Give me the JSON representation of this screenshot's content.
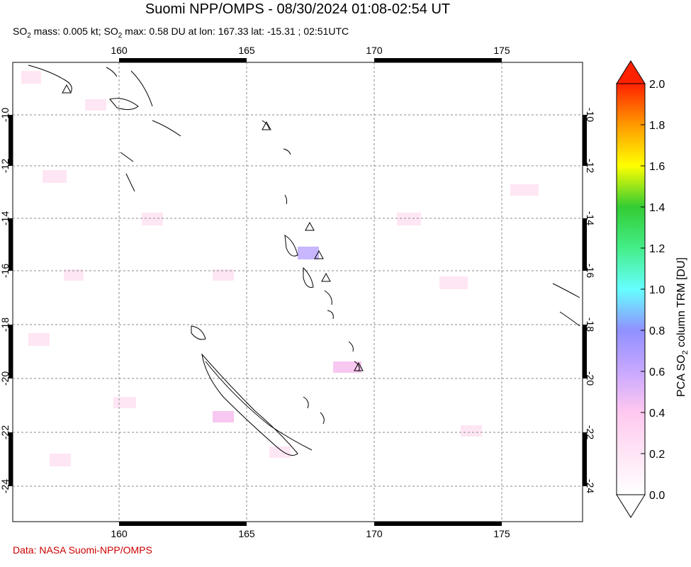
{
  "map": {
    "title": "Suomi NPP/OMPS - 08/30/2024 01:08-02:54 UT",
    "subtitle": {
      "p1": "SO",
      "p2": " mass: 0.005 kt; SO",
      "p3": " max: 0.58 DU at lon: 167.33 lat: -15.31 ; 02:51UTC",
      "sub": "2"
    },
    "credit": "Data: NASA Suomi-NPP/OMPS",
    "lon_ticks": [
      "160",
      "165",
      "170",
      "175"
    ],
    "lat_ticks": [
      "-10",
      "-12",
      "-14",
      "-16",
      "-18",
      "-20",
      "-22",
      "-24"
    ],
    "colorbar": {
      "label_pre": "PCA SO",
      "label_sub": "2",
      "label_post": " column TRM [DU]",
      "ticks": [
        "0.0",
        "0.2",
        "0.4",
        "0.6",
        "0.8",
        "1.0",
        "1.2",
        "1.4",
        "1.6",
        "1.8",
        "2.0"
      ],
      "colors": [
        "#ffffff",
        "#ffccee",
        "#cc99ff",
        "#8888ff",
        "#66ffff",
        "#33dd33",
        "#ffff00",
        "#ff9900",
        "#ff2200"
      ]
    },
    "volcano_count_note": "",
    "volcanoes": [
      "volcano-1",
      "volcano-2",
      "volcano-3",
      "volcano-4",
      "volcano-5",
      "volcano-6"
    ]
  }
}
